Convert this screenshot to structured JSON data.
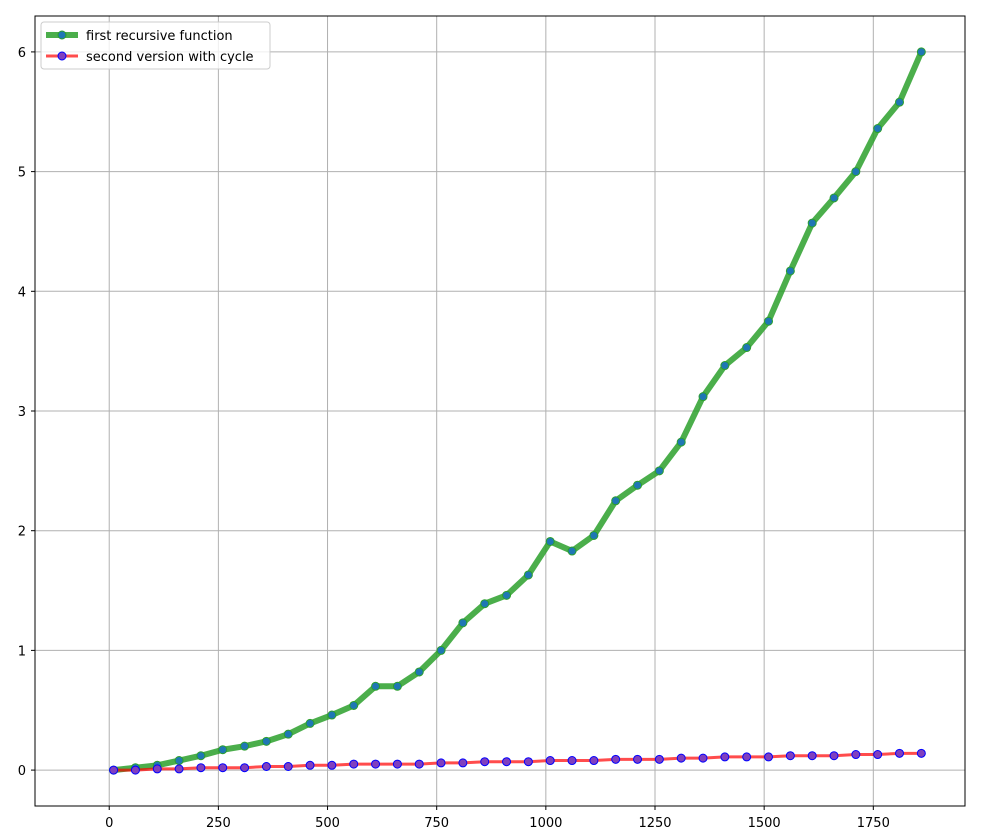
{
  "chart_data": {
    "type": "line",
    "title": "",
    "xlabel": "",
    "ylabel": "",
    "xlim": [
      -170,
      1960
    ],
    "ylim": [
      -0.3,
      6.3
    ],
    "grid": true,
    "legend_position": "upper-left",
    "xticks": [
      0,
      250,
      500,
      750,
      1000,
      1250,
      1500,
      1750
    ],
    "xtick_labels": [
      "0",
      "250",
      "500",
      "750",
      "1000",
      "1250",
      "1500",
      "1750"
    ],
    "yticks": [
      0,
      1,
      2,
      3,
      4,
      5,
      6
    ],
    "ytick_labels": [
      "0",
      "1",
      "2",
      "3",
      "4",
      "5",
      "6"
    ],
    "x": [
      10,
      60,
      110,
      160,
      210,
      260,
      310,
      360,
      410,
      460,
      510,
      560,
      610,
      660,
      710,
      760,
      810,
      860,
      910,
      960,
      1010,
      1060,
      1110,
      1160,
      1210,
      1260,
      1310,
      1360,
      1410,
      1460,
      1510,
      1560,
      1610,
      1660,
      1710,
      1760,
      1810,
      1860
    ],
    "series": [
      {
        "name": "first recursive function",
        "line_color": "#2ca02c",
        "marker_face": "#1f77b4",
        "marker_edge": "#2ca02c",
        "values": [
          0.0,
          0.02,
          0.04,
          0.08,
          0.12,
          0.17,
          0.2,
          0.24,
          0.3,
          0.39,
          0.46,
          0.54,
          0.7,
          0.7,
          0.82,
          1.0,
          1.23,
          1.39,
          1.46,
          1.63,
          1.91,
          1.83,
          1.96,
          2.25,
          2.38,
          2.5,
          2.74,
          3.12,
          3.38,
          3.53,
          3.75,
          4.17,
          4.57,
          4.78,
          5.0,
          5.36,
          5.58,
          6.0
        ]
      },
      {
        "name": "second version with cycle",
        "line_color": "#ff0000",
        "marker_face": "#7f3fbf",
        "marker_edge": "#0000ff",
        "values": [
          0.0,
          0.0,
          0.01,
          0.01,
          0.02,
          0.02,
          0.02,
          0.03,
          0.03,
          0.04,
          0.04,
          0.05,
          0.05,
          0.05,
          0.05,
          0.06,
          0.06,
          0.07,
          0.07,
          0.07,
          0.08,
          0.08,
          0.08,
          0.09,
          0.09,
          0.09,
          0.1,
          0.1,
          0.11,
          0.11,
          0.11,
          0.12,
          0.12,
          0.12,
          0.13,
          0.13,
          0.14,
          0.14
        ]
      }
    ]
  }
}
